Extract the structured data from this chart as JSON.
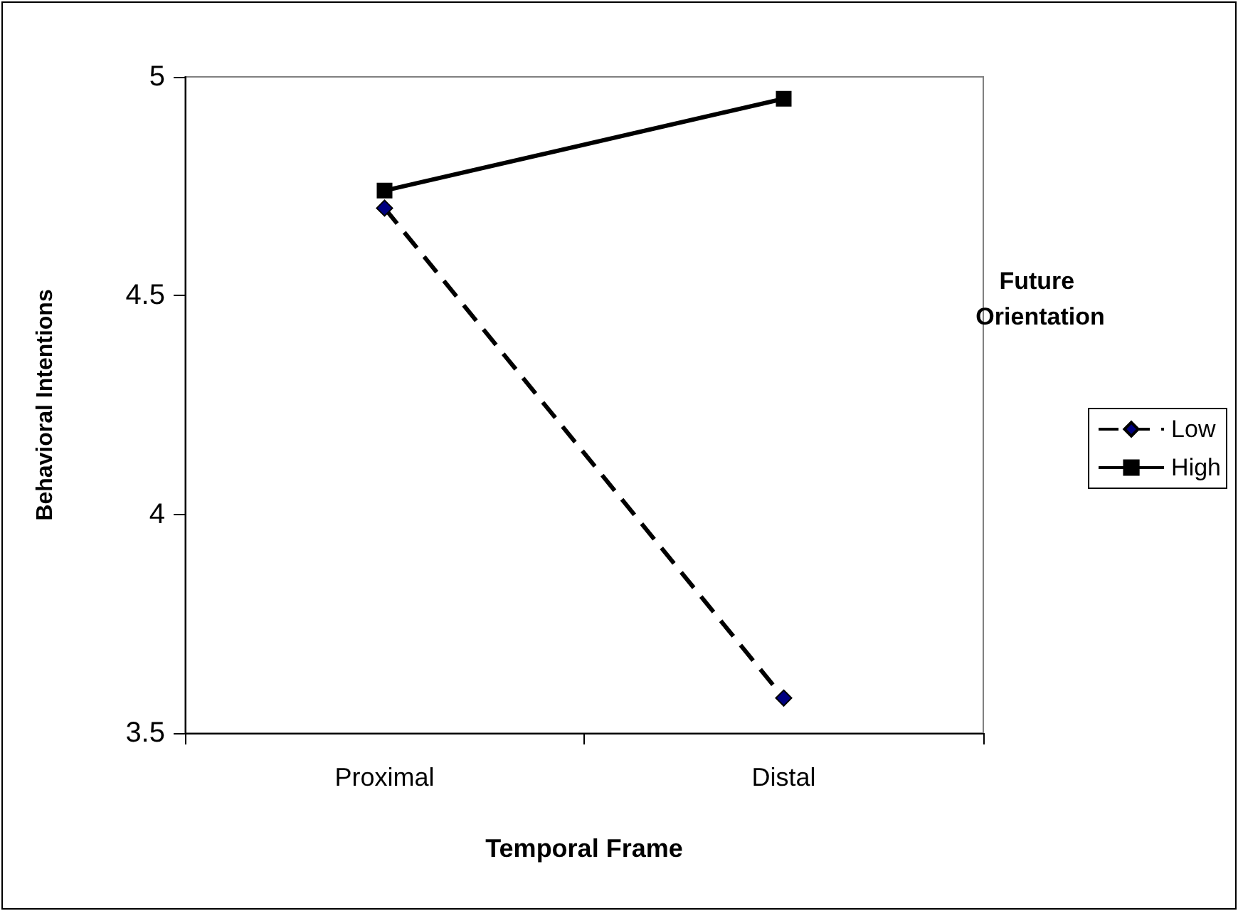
{
  "chart_data": {
    "type": "line",
    "xlabel": "Temporal Frame",
    "ylabel": "Behavioral Intentions",
    "legend_title": "Future Orientation",
    "categories": [
      "Proximal",
      "Distal"
    ],
    "series": [
      {
        "name": "Low",
        "color": "#000080",
        "values": [
          4.7,
          3.58
        ],
        "marker": "diamond",
        "line_style": "dashed"
      },
      {
        "name": "High",
        "color": "#000000",
        "values": [
          4.74,
          4.95
        ],
        "marker": "square",
        "line_style": "solid"
      }
    ],
    "ylim": [
      3.5,
      5
    ],
    "yticks": [
      3.5,
      4,
      4.5,
      5
    ],
    "grid": false,
    "legend": "right"
  }
}
